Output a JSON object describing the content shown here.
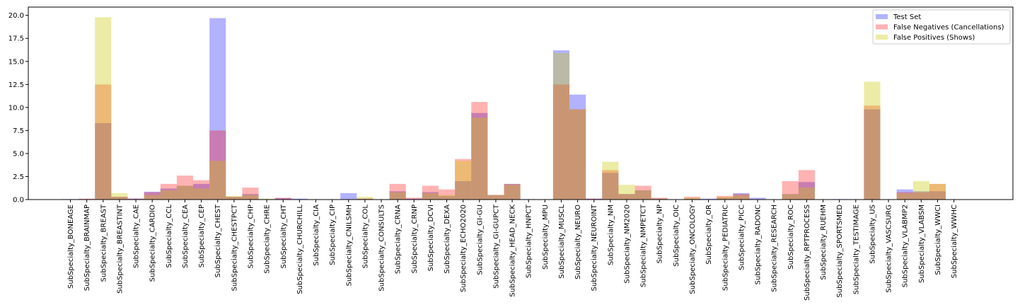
{
  "chart_data": {
    "type": "bar",
    "title": "",
    "xlabel": "",
    "ylabel": "",
    "ylim": [
      0,
      20.9
    ],
    "yticks": [
      "0.0",
      "2.5",
      "5.0",
      "7.5",
      "10.0",
      "12.5",
      "15.0",
      "17.5",
      "20.0"
    ],
    "legend_position": "top-right",
    "categories": [
      "SubSpecialty_BONEAGE",
      "SubSpecialty_BRAINMAP",
      "SubSpecialty_BREAST",
      "SubSpecialty_BREASTINT",
      "SubSpecialty_CAE",
      "SubSpecialty_CARDIO",
      "SubSpecialty_CCL",
      "SubSpecialty_CEA",
      "SubSpecialty_CEP",
      "SubSpecialty_CHEST",
      "SubSpecialty_CHESTPCT",
      "SubSpecialty_CHP",
      "SubSpecialty_CHRE",
      "SubSpecialty_CHT",
      "SubSpecialty_CHURCHILL",
      "SubSpecialty_CIA",
      "SubSpecialty_CIP",
      "SubSpecialty_CNILSMH",
      "SubSpecialty_COL",
      "SubSpecialty_CONSULTS",
      "SubSpecialty_CRNA",
      "SubSpecialty_CRNP",
      "SubSpecialty_DCVI",
      "SubSpecialty_DEXA",
      "SubSpecialty_ECHO2020",
      "SubSpecialty_GI-GU",
      "SubSpecialty_GI-GUPCT",
      "SubSpecialty_HEAD_NECK",
      "SubSpecialty_HNPCT",
      "SubSpecialty_MPU",
      "SubSpecialty_MUSCL",
      "SubSpecialty_NEURO",
      "SubSpecialty_NEUROINT",
      "SubSpecialty_NM",
      "SubSpecialty_NM2020",
      "SubSpecialty_NMPETCT",
      "SubSpecialty_NP",
      "SubSpecialty_OIC",
      "SubSpecialty_ONCOLOGY",
      "SubSpecialty_OR",
      "SubSpecialty_PEDIATRIC",
      "SubSpecialty_PICC",
      "SubSpecialty_RADONC",
      "SubSpecialty_RESEARCH",
      "SubSpecialty_ROC",
      "SubSpecialty_RPTPROCESS",
      "SubSpecialty_RUEHM",
      "SubSpecialty_SPORTSMED",
      "SubSpecialty_TESTIMAGE",
      "SubSpecialty_US",
      "SubSpecialty_VASCSURG",
      "SubSpecialty_VLABMP2",
      "SubSpecialty_VLABSM",
      "SubSpecialty_WWCI",
      "SubSpecialty_WWHC"
    ],
    "series": [
      {
        "name": "Test Set",
        "color": "#0000ff",
        "opacity": 0.3,
        "values": [
          0.05,
          0.05,
          8.3,
          0.3,
          0.1,
          0.85,
          1.2,
          1.5,
          1.7,
          19.7,
          0.3,
          0.6,
          0.05,
          0.15,
          0.1,
          0.0,
          0.0,
          0.7,
          0.1,
          0.0,
          0.9,
          0.1,
          0.8,
          0.4,
          2.0,
          9.4,
          0.5,
          1.7,
          0.05,
          0.0,
          16.2,
          11.4,
          0.1,
          2.9,
          0.6,
          1.0,
          0.1,
          0.0,
          0.1,
          0.1,
          0.2,
          0.7,
          0.2,
          0.0,
          0.6,
          1.9,
          0.0,
          0.05,
          0.0,
          9.8,
          0.0,
          1.1,
          0.9,
          0.9,
          0.0
        ]
      },
      {
        "name": "False Negatives (Cancellations)",
        "color": "#ff0000",
        "opacity": 0.3,
        "values": [
          0.0,
          0.1,
          12.5,
          0.3,
          0.1,
          0.8,
          1.7,
          2.6,
          2.1,
          7.5,
          0.3,
          1.3,
          0.0,
          0.2,
          0.0,
          0.0,
          0.0,
          0.0,
          0.1,
          0.0,
          1.7,
          0.2,
          1.5,
          1.1,
          4.4,
          10.6,
          0.5,
          1.7,
          0.0,
          0.0,
          12.5,
          9.8,
          0.1,
          3.2,
          0.6,
          1.5,
          0.2,
          0.0,
          0.3,
          0.0,
          0.4,
          0.6,
          0.0,
          0.0,
          2.0,
          3.2,
          0.0,
          0.0,
          0.0,
          10.2,
          0.0,
          0.8,
          0.8,
          1.7,
          0.0
        ]
      },
      {
        "name": "False Positives (Shows)",
        "color": "#c8c800",
        "opacity": 0.35,
        "values": [
          0.0,
          0.0,
          19.8,
          0.7,
          0.0,
          0.5,
          1.0,
          1.5,
          1.2,
          4.2,
          0.4,
          0.5,
          0.1,
          0.0,
          0.0,
          0.0,
          0.0,
          0.0,
          0.3,
          0.0,
          0.8,
          0.0,
          0.7,
          0.5,
          4.2,
          8.9,
          0.5,
          1.6,
          0.0,
          0.0,
          15.9,
          9.8,
          0.0,
          4.1,
          1.6,
          1.0,
          0.1,
          0.0,
          0.2,
          0.0,
          0.3,
          0.5,
          0.0,
          0.0,
          0.6,
          1.3,
          0.0,
          0.0,
          0.0,
          12.8,
          0.0,
          0.7,
          2.0,
          1.7,
          0.0
        ]
      }
    ]
  }
}
